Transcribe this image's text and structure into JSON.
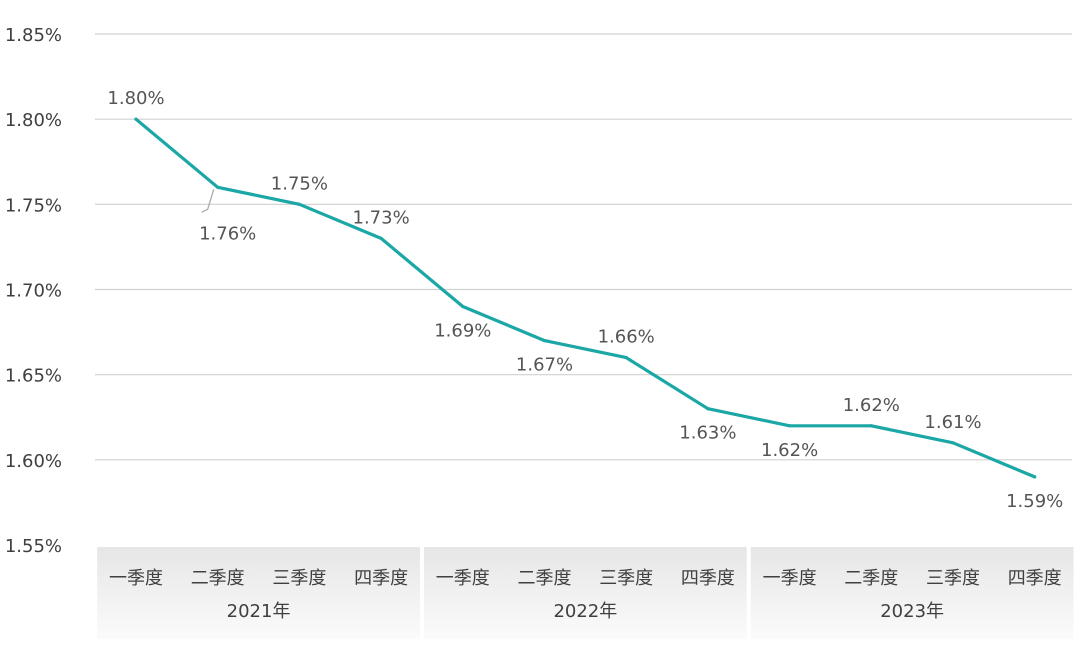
{
  "chart_data": {
    "type": "line",
    "categories": [
      "一季度",
      "二季度",
      "三季度",
      "四季度",
      "一季度",
      "二季度",
      "三季度",
      "四季度",
      "一季度",
      "二季度",
      "三季度",
      "四季度"
    ],
    "groups": [
      {
        "label": "2021年",
        "size": 4
      },
      {
        "label": "2022年",
        "size": 4
      },
      {
        "label": "2023年",
        "size": 4
      }
    ],
    "series": [
      {
        "values": [
          1.8,
          1.76,
          1.75,
          1.73,
          1.69,
          1.67,
          1.66,
          1.63,
          1.62,
          1.62,
          1.61,
          1.59
        ],
        "labels": [
          "1.80%",
          "1.76%",
          "1.75%",
          "1.73%",
          "1.69%",
          "1.67%",
          "1.66%",
          "1.63%",
          "1.62%",
          "1.62%",
          "1.61%",
          "1.59%"
        ]
      }
    ],
    "ylim": [
      1.55,
      1.85
    ],
    "yticks": [
      1.55,
      1.6,
      1.65,
      1.7,
      1.75,
      1.8,
      1.85
    ],
    "ytick_labels": [
      "1.55%",
      "1.60%",
      "1.65%",
      "1.70%",
      "1.75%",
      "1.80%",
      "1.85%"
    ],
    "grid": true,
    "colors": {
      "line": "#1aa7a6",
      "grid": "#d0d0d0",
      "axis_text": "#404040",
      "label_text": "#555555",
      "band": "#ececec"
    }
  }
}
